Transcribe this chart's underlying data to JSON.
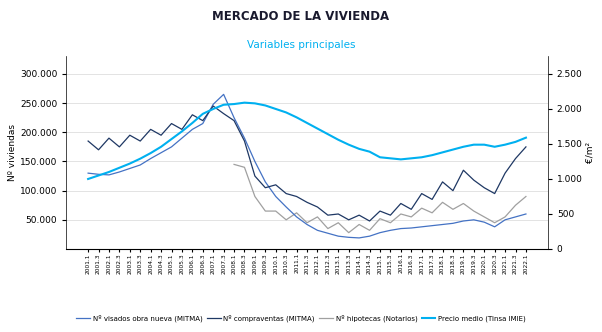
{
  "title": "MERCADO DE LA VIVIENDA",
  "subtitle": "Variables principales",
  "ylabel_left": "Nº viviendas",
  "ylabel_right": "€/m²",
  "ylim_left": [
    0,
    330000
  ],
  "ylim_right": [
    0,
    2750
  ],
  "yticks_left": [
    50000,
    100000,
    150000,
    200000,
    250000,
    300000
  ],
  "yticks_right": [
    0,
    500,
    1000,
    1500,
    2000,
    2500
  ],
  "legend_labels": [
    "Nº visados obra nueva (MITMA)",
    "Nº compraventas (MITMA)",
    "Nº hipotecas (Notarios)",
    "Precio medio (Tinsa IMIE)"
  ],
  "color_visados": "#4472C4",
  "color_compraventas": "#1F3864",
  "color_hipotecas": "#A0A0A0",
  "color_precio": "#00B0F0",
  "xtick_labels": [
    "2001.1",
    "2001.3",
    "2002.1",
    "2002.3",
    "2003.1",
    "2003.3",
    "2004.1",
    "2004.3",
    "2005.1",
    "2005.3",
    "2006.1",
    "2006.3",
    "2007.1",
    "2007.3",
    "2008.1",
    "2008.3",
    "2009.1",
    "2009.3",
    "2010.1",
    "2010.3",
    "2011.1",
    "2011.3",
    "2012.1",
    "2012.3",
    "2013.1",
    "2013.3",
    "2014.1",
    "2014.3",
    "2015.1",
    "2015.3",
    "2016.1",
    "2016.3",
    "2017.1",
    "2017.3",
    "2018.1",
    "2018.3",
    "2019.1",
    "2019.3",
    "2020.1",
    "2020.3",
    "2021.1",
    "2021.3",
    "2022.1"
  ],
  "visados": [
    130000,
    128000,
    127000,
    132000,
    138000,
    144000,
    155000,
    165000,
    175000,
    190000,
    205000,
    215000,
    248000,
    265000,
    225000,
    190000,
    150000,
    115000,
    90000,
    72000,
    55000,
    42000,
    32000,
    27000,
    22000,
    20000,
    19000,
    22000,
    28000,
    32000,
    35000,
    36000,
    38000,
    40000,
    42000,
    44000,
    48000,
    50000,
    46000,
    38000,
    50000,
    55000,
    60000
  ],
  "compraventas": [
    185000,
    170000,
    190000,
    175000,
    195000,
    185000,
    205000,
    195000,
    215000,
    205000,
    230000,
    220000,
    245000,
    232000,
    220000,
    185000,
    125000,
    105000,
    110000,
    95000,
    90000,
    80000,
    72000,
    58000,
    60000,
    50000,
    58000,
    48000,
    65000,
    58000,
    78000,
    68000,
    95000,
    85000,
    115000,
    100000,
    135000,
    118000,
    105000,
    95000,
    130000,
    155000,
    175000
  ],
  "hipotecas": [
    null,
    null,
    null,
    null,
    null,
    null,
    null,
    null,
    null,
    null,
    null,
    null,
    null,
    null,
    145000,
    140000,
    90000,
    65000,
    65000,
    50000,
    62000,
    45000,
    55000,
    35000,
    45000,
    28000,
    42000,
    32000,
    52000,
    45000,
    60000,
    55000,
    70000,
    62000,
    80000,
    68000,
    78000,
    65000,
    55000,
    45000,
    55000,
    75000,
    90000
  ],
  "precio": [
    1000,
    1050,
    1100,
    1160,
    1220,
    1290,
    1370,
    1460,
    1570,
    1680,
    1800,
    1930,
    2000,
    2060,
    2070,
    2090,
    2080,
    2050,
    2000,
    1950,
    1880,
    1800,
    1720,
    1640,
    1560,
    1490,
    1430,
    1390,
    1310,
    1295,
    1280,
    1295,
    1310,
    1340,
    1380,
    1420,
    1460,
    1490,
    1490,
    1460,
    1490,
    1530,
    1590
  ]
}
